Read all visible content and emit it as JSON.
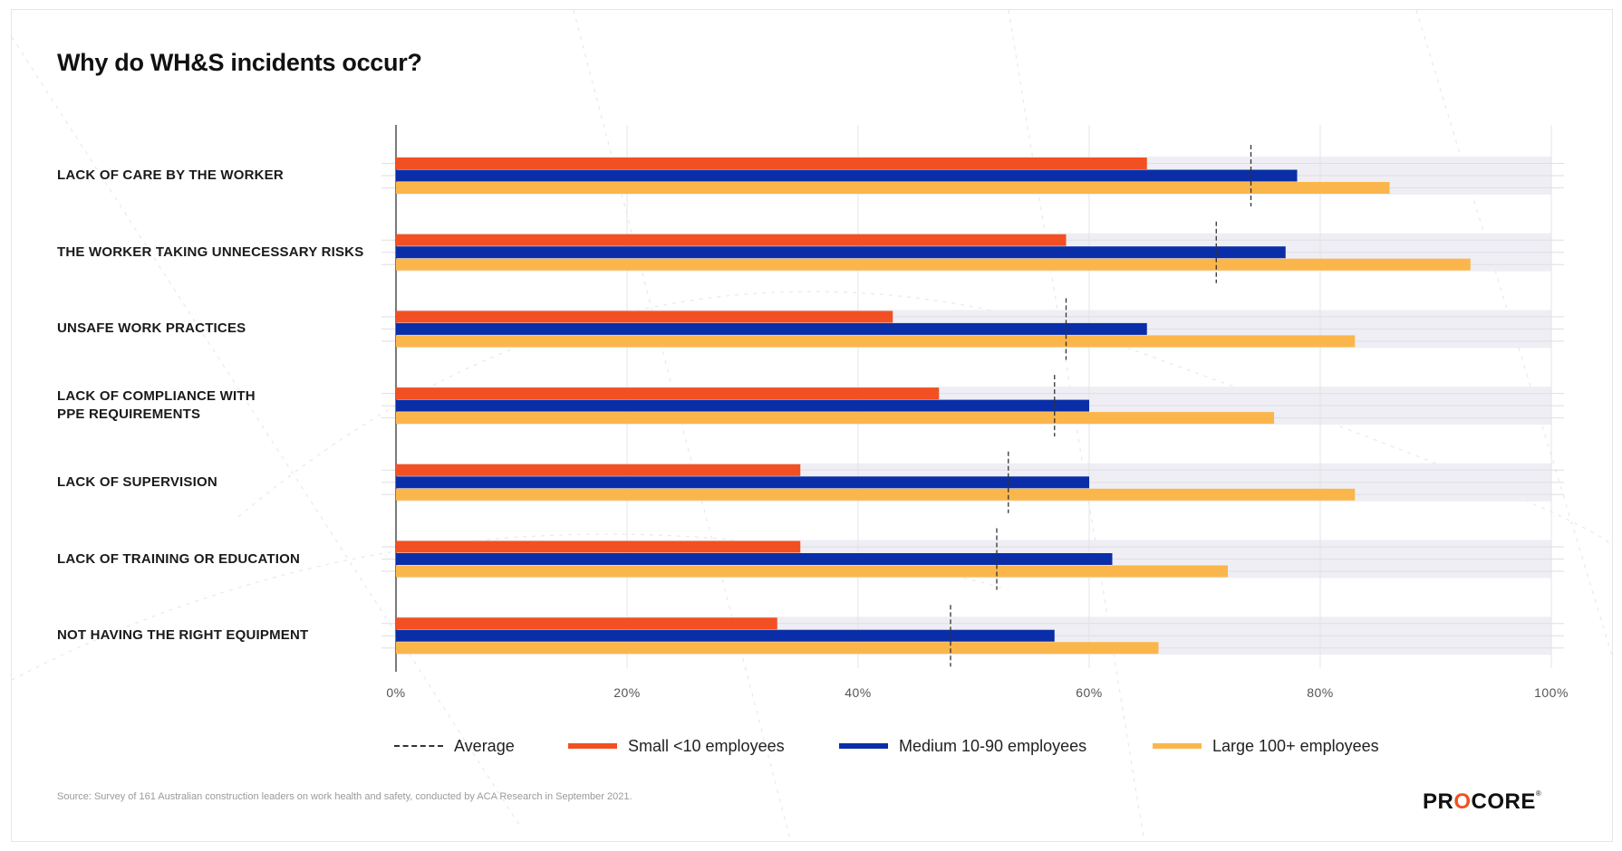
{
  "title": "Why do WH&S incidents occur?",
  "source": "Source: Survey of 161 Australian construction leaders on work health and safety, conducted by ACA Research in September 2021.",
  "logo": {
    "text": "PROCORE",
    "mark": "®"
  },
  "colors": {
    "small": "#f25022",
    "medium": "#0a2ea8",
    "large": "#fbb64b",
    "average": "#333333",
    "band": "#eeeef4"
  },
  "legend": {
    "average": "Average",
    "small": "Small <10 employees",
    "medium": "Medium 10-90 employees",
    "large": "Large 100+ employees"
  },
  "chart_data": {
    "type": "bar",
    "orientation": "horizontal",
    "title": "Why do WH&S incidents occur?",
    "xlabel": "",
    "ylabel": "",
    "xlim": [
      0,
      100
    ],
    "x_ticks": [
      "0%",
      "20%",
      "40%",
      "60%",
      "80%",
      "100%"
    ],
    "grid": true,
    "legend_position": "bottom",
    "categories": [
      "LACK OF CARE BY THE WORKER",
      "THE WORKER TAKING UNNECESSARY RISKS",
      "UNSAFE WORK PRACTICES",
      "LACK OF COMPLIANCE WITH\nPPE REQUIREMENTS",
      "LACK OF SUPERVISION",
      "LACK OF TRAINING OR EDUCATION",
      "NOT HAVING THE RIGHT EQUIPMENT"
    ],
    "series": [
      {
        "name": "Small <10 employees",
        "values": [
          65,
          58,
          43,
          47,
          35,
          35,
          33
        ]
      },
      {
        "name": "Medium 10-90 employees",
        "values": [
          78,
          77,
          65,
          60,
          60,
          62,
          57
        ]
      },
      {
        "name": "Large 100+ employees",
        "values": [
          86,
          93,
          83,
          76,
          83,
          72,
          66
        ]
      }
    ],
    "average": {
      "name": "Average",
      "values": [
        74,
        71,
        58,
        57,
        53,
        52,
        48
      ]
    }
  }
}
